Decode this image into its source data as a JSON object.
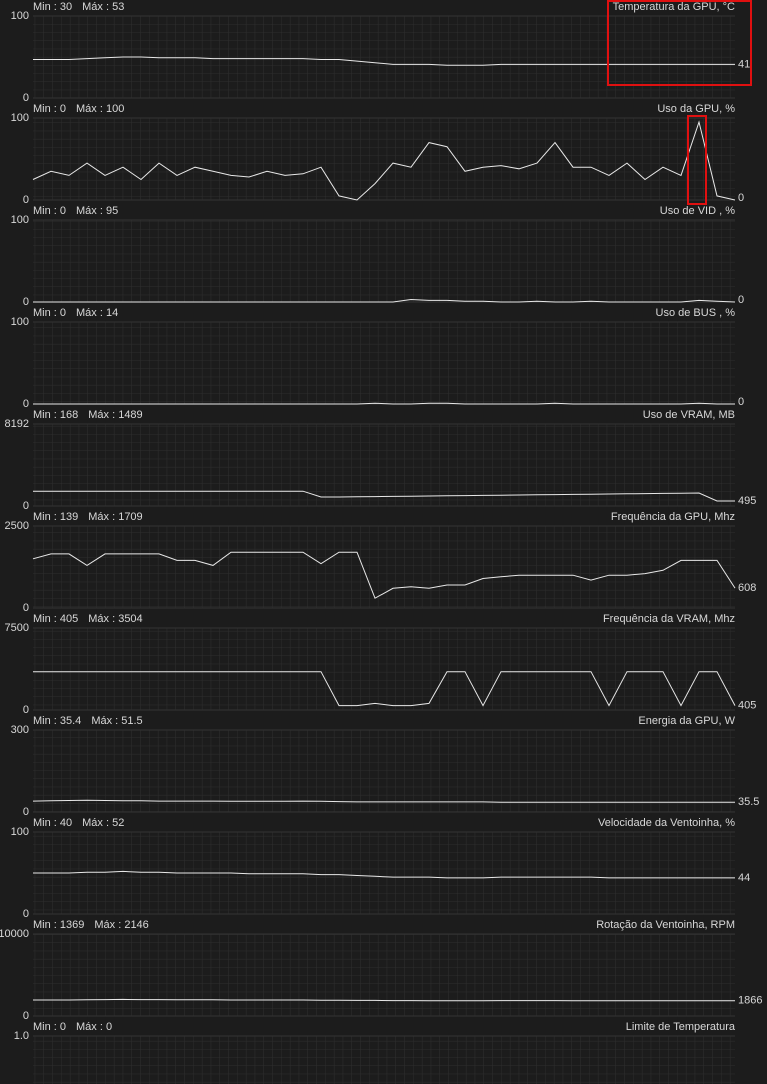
{
  "chart_data": [
    {
      "type": "line",
      "title": "Temperatura da GPU, °C",
      "min_text": "Min : 30",
      "max_text": "Máx : 53",
      "ylim": [
        0,
        100
      ],
      "yticks": [
        0,
        100
      ],
      "color": "#e8e8e8",
      "current": 41,
      "values": [
        47,
        47,
        47,
        48,
        49,
        50,
        50,
        49,
        49,
        49,
        48,
        48,
        48,
        48,
        48,
        48,
        47,
        47,
        45,
        43,
        41,
        41,
        41,
        40,
        40,
        40,
        41,
        41,
        41,
        41,
        41,
        41,
        41,
        41,
        41,
        41,
        41,
        41,
        41,
        41
      ]
    },
    {
      "type": "line",
      "title": "Uso da GPU, %",
      "min_text": "Min : 0",
      "max_text": "Máx : 100",
      "ylim": [
        0,
        100
      ],
      "yticks": [
        0,
        100
      ],
      "color": "#e8e8e8",
      "current": 0,
      "values": [
        25,
        35,
        30,
        45,
        30,
        40,
        25,
        45,
        30,
        40,
        35,
        30,
        28,
        35,
        30,
        32,
        40,
        5,
        0,
        20,
        45,
        40,
        70,
        65,
        35,
        40,
        42,
        38,
        45,
        70,
        40,
        40,
        30,
        45,
        25,
        40,
        30,
        95,
        5,
        0
      ]
    },
    {
      "type": "line",
      "title": "Uso de VID , %",
      "min_text": "Min : 0",
      "max_text": "Máx : 95",
      "ylim": [
        0,
        100
      ],
      "yticks": [
        0,
        100
      ],
      "color": "#e8e8e8",
      "current": 0,
      "values": [
        0,
        0,
        0,
        0,
        0,
        0,
        0,
        0,
        0,
        0,
        0,
        0,
        0,
        0,
        0,
        0,
        0,
        0,
        0,
        0,
        0,
        3,
        2,
        2,
        1,
        1,
        0,
        0,
        1,
        0,
        0,
        1,
        0,
        0,
        0,
        0,
        0,
        2,
        1,
        0
      ]
    },
    {
      "type": "line",
      "title": "Uso de BUS , %",
      "min_text": "Min : 0",
      "max_text": "Máx : 14",
      "ylim": [
        0,
        100
      ],
      "yticks": [
        0,
        100
      ],
      "color": "#e8e8e8",
      "current": 0,
      "values": [
        0,
        0,
        0,
        0,
        0,
        0,
        0,
        0,
        0,
        0,
        0,
        0,
        0,
        0,
        0,
        0,
        0,
        0,
        0,
        1,
        0,
        0,
        1,
        1,
        0,
        0,
        0,
        0,
        0,
        1,
        0,
        0,
        0,
        0,
        0,
        0,
        0,
        1,
        0,
        0
      ]
    },
    {
      "type": "line",
      "title": "Uso de VRAM, MB",
      "min_text": "Min : 168",
      "max_text": "Máx : 1489",
      "ylim": [
        0,
        8192
      ],
      "yticks": [
        0,
        8192
      ],
      "color": "#e8e8e8",
      "current": 495,
      "values": [
        1480,
        1480,
        1480,
        1480,
        1480,
        1480,
        1480,
        1480,
        1480,
        1480,
        1480,
        1480,
        1480,
        1480,
        1480,
        1480,
        900,
        900,
        920,
        940,
        960,
        980,
        1000,
        1020,
        1040,
        1060,
        1080,
        1100,
        1120,
        1140,
        1160,
        1180,
        1200,
        1220,
        1240,
        1260,
        1280,
        1300,
        500,
        495
      ]
    },
    {
      "type": "line",
      "title": "Frequência da GPU, Mhz",
      "min_text": "Min : 139",
      "max_text": "Máx : 1709",
      "ylim": [
        0,
        2500
      ],
      "yticks": [
        0,
        2500
      ],
      "color": "#e8e8e8",
      "current": 608,
      "values": [
        1500,
        1650,
        1650,
        1300,
        1650,
        1650,
        1650,
        1650,
        1450,
        1450,
        1300,
        1700,
        1700,
        1700,
        1700,
        1700,
        1350,
        1700,
        1700,
        300,
        600,
        650,
        600,
        700,
        700,
        900,
        950,
        1000,
        1000,
        1000,
        1000,
        850,
        1000,
        1000,
        1050,
        1150,
        1450,
        1450,
        1450,
        608
      ]
    },
    {
      "type": "line",
      "title": "Frequência da VRAM, Mhz",
      "min_text": "Min : 405",
      "max_text": "Máx : 3504",
      "ylim": [
        0,
        7500
      ],
      "yticks": [
        0,
        7500
      ],
      "color": "#e8e8e8",
      "current": 405,
      "values": [
        3500,
        3500,
        3500,
        3500,
        3500,
        3500,
        3500,
        3500,
        3500,
        3500,
        3500,
        3500,
        3500,
        3500,
        3500,
        3500,
        3500,
        405,
        400,
        600,
        400,
        400,
        600,
        3500,
        3500,
        405,
        3500,
        3500,
        3500,
        3500,
        3500,
        3500,
        405,
        3500,
        3500,
        3500,
        405,
        3500,
        3500,
        405
      ]
    },
    {
      "type": "line",
      "title": "Energia da GPU, W",
      "min_text": "Min : 35.4",
      "max_text": "Máx : 51.5",
      "ylim": [
        0,
        300
      ],
      "yticks": [
        0,
        300
      ],
      "color": "#e8e8e8",
      "current": 35.5,
      "values": [
        40,
        41,
        42,
        43,
        42,
        41,
        41,
        40,
        40,
        40,
        40,
        39,
        39,
        39,
        39,
        40,
        39,
        38,
        37,
        37,
        37,
        37,
        37,
        37,
        37,
        37,
        36,
        36,
        36,
        36,
        36,
        36,
        36,
        36,
        36,
        36,
        36,
        36,
        35.5,
        35.5
      ]
    },
    {
      "type": "line",
      "title": "Velocidade da Ventoinha, %",
      "min_text": "Min : 40",
      "max_text": "Máx : 52",
      "ylim": [
        0,
        100
      ],
      "yticks": [
        0,
        100
      ],
      "color": "#e8e8e8",
      "current": 44,
      "values": [
        50,
        50,
        50,
        51,
        51,
        52,
        51,
        51,
        50,
        50,
        50,
        50,
        49,
        49,
        49,
        49,
        48,
        48,
        47,
        46,
        45,
        45,
        45,
        44,
        44,
        44,
        45,
        45,
        45,
        45,
        45,
        45,
        44,
        44,
        44,
        44,
        44,
        44,
        44,
        44
      ]
    },
    {
      "type": "line",
      "title": "Rotação da Ventoinha, RPM",
      "min_text": "Min : 1369",
      "max_text": "Máx : 2146",
      "ylim": [
        0,
        10000
      ],
      "yticks": [
        0,
        10000
      ],
      "color": "#e8e8e8",
      "current": 1866,
      "values": [
        1950,
        1950,
        1950,
        1980,
        2000,
        2020,
        2000,
        2000,
        1980,
        1980,
        1980,
        1950,
        1950,
        1950,
        1950,
        1950,
        1930,
        1920,
        1900,
        1900,
        1880,
        1880,
        1850,
        1850,
        1850,
        1850,
        1880,
        1880,
        1880,
        1880,
        1870,
        1870,
        1870,
        1870,
        1866,
        1866,
        1866,
        1866,
        1866,
        1866
      ]
    },
    {
      "type": "line",
      "title": "Limite de Temperatura",
      "min_text": "Min : 0",
      "max_text": "Máx : 0",
      "ylim": [
        0,
        1
      ],
      "yticks": [
        {
          "value": 1,
          "label": "1.0"
        }
      ],
      "color": "#e8e8e8"
    }
  ]
}
